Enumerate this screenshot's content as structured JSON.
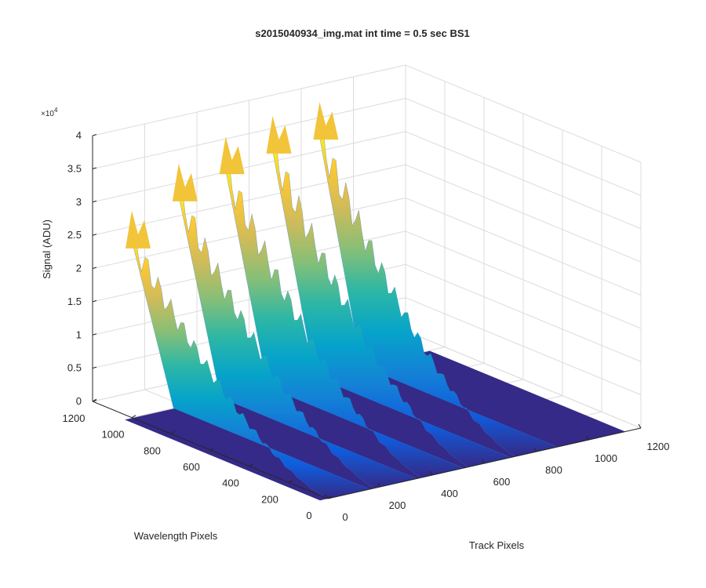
{
  "chart_data": {
    "type": "surface",
    "title": "s2015040934_img.mat int time = 0.5 sec   BS1",
    "xlabel": "Track Pixels",
    "ylabel": "Wavelength Pixels",
    "zlabel": "Signal (ADU)",
    "z_multiplier": "×10",
    "z_multiplier_exponent": "4",
    "xlim": [
      0,
      1200
    ],
    "ylim": [
      0,
      1200
    ],
    "zlim": [
      0,
      4
    ],
    "x_ticks": [
      "0",
      "200",
      "400",
      "600",
      "800",
      "1000",
      "1200"
    ],
    "y_ticks": [
      "0",
      "200",
      "400",
      "600",
      "800",
      "1000",
      "1200"
    ],
    "z_ticks": [
      "0",
      "0.5",
      "1",
      "1.5",
      "2",
      "2.5",
      "3",
      "3.5",
      "4"
    ],
    "x_tick_values": [
      0,
      200,
      400,
      600,
      800,
      1000,
      1200
    ],
    "y_tick_values": [
      0,
      200,
      400,
      600,
      800,
      1000,
      1200
    ],
    "z_tick_values": [
      0,
      0.5,
      1,
      1.5,
      2,
      2.5,
      3,
      3.5,
      4
    ],
    "grid": true,
    "colormap": "parula",
    "colormap_stops": [
      "#352a87",
      "#0f5cdd",
      "#1481d6",
      "#06a4ca",
      "#2eb7a4",
      "#87bf77",
      "#d1bb59",
      "#fec832",
      "#f9fb0e"
    ],
    "traces": [
      {
        "track_center": 0,
        "wavelength_extent": 1000,
        "peak_signal": 2.9
      },
      {
        "track_center": 180,
        "wavelength_extent": 1000,
        "peak_signal": 3.45
      },
      {
        "track_center": 360,
        "wavelength_extent": 1000,
        "peak_signal": 3.7
      },
      {
        "track_center": 540,
        "wavelength_extent": 1000,
        "peak_signal": 3.85
      },
      {
        "track_center": 720,
        "wavelength_extent": 1000,
        "peak_signal": 3.9
      }
    ]
  }
}
